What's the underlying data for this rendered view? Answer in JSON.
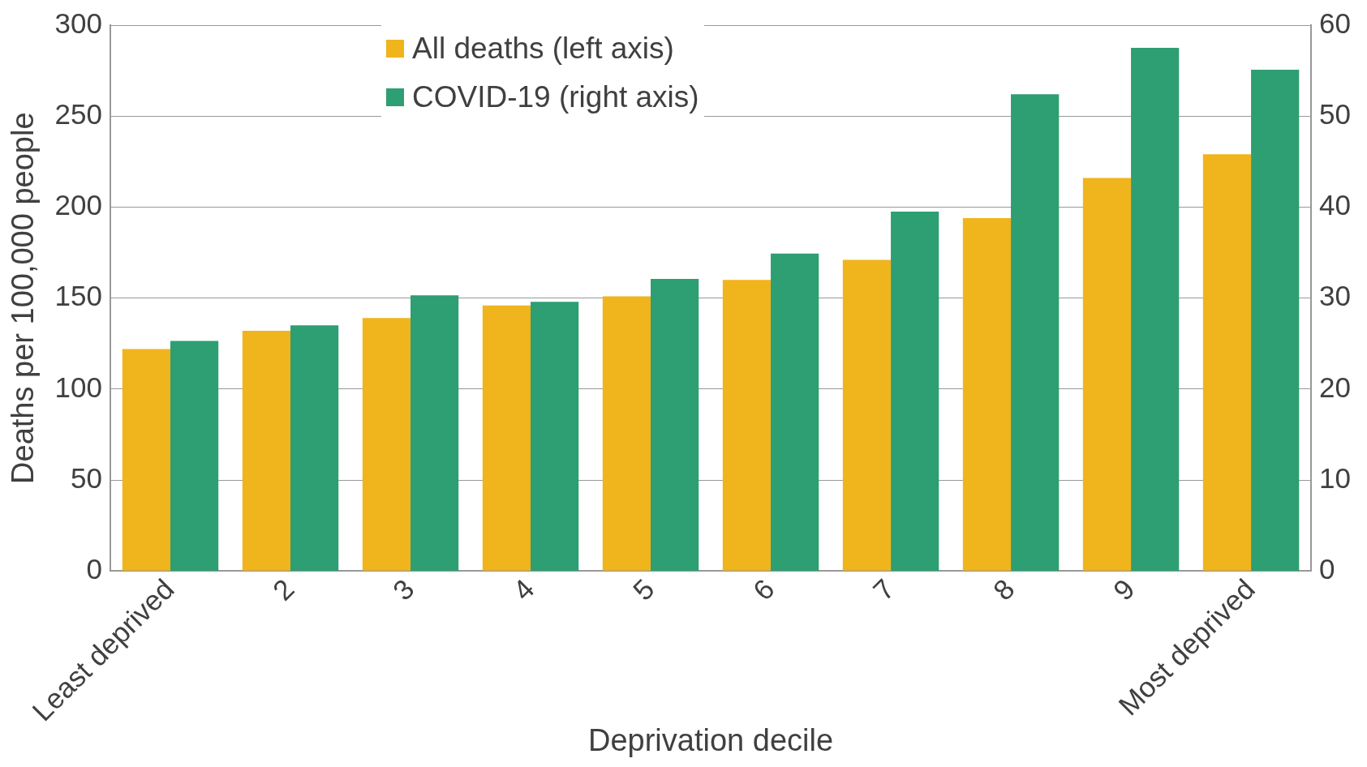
{
  "chart_data": {
    "type": "bar",
    "xlabel": "Deprivation decile",
    "ylabel": "Deaths per 100,000 people",
    "categories": [
      "Least deprived",
      "2",
      "3",
      "4",
      "5",
      "6",
      "7",
      "8",
      "9",
      "Most deprived"
    ],
    "series": [
      {
        "name": "All deaths (left axis)",
        "color": "#f0b41c",
        "values": [
          122,
          132,
          139,
          146,
          151,
          160,
          171,
          194,
          216,
          229
        ]
      },
      {
        "name": "COVID-19 (right axis)",
        "color": "#2e9e73",
        "axis": "y2",
        "values": [
          25.3,
          27.0,
          30.3,
          29.6,
          32.1,
          34.9,
          39.5,
          52.4,
          57.5,
          55.1
        ]
      }
    ],
    "ylim": [
      0,
      300
    ],
    "yticks": [
      0,
      50,
      100,
      150,
      200,
      250,
      300
    ],
    "y2lim": [
      0,
      60
    ],
    "y2ticks": [
      0,
      10,
      20,
      30,
      40,
      50,
      60
    ],
    "grid": "y",
    "legend": "top left"
  }
}
